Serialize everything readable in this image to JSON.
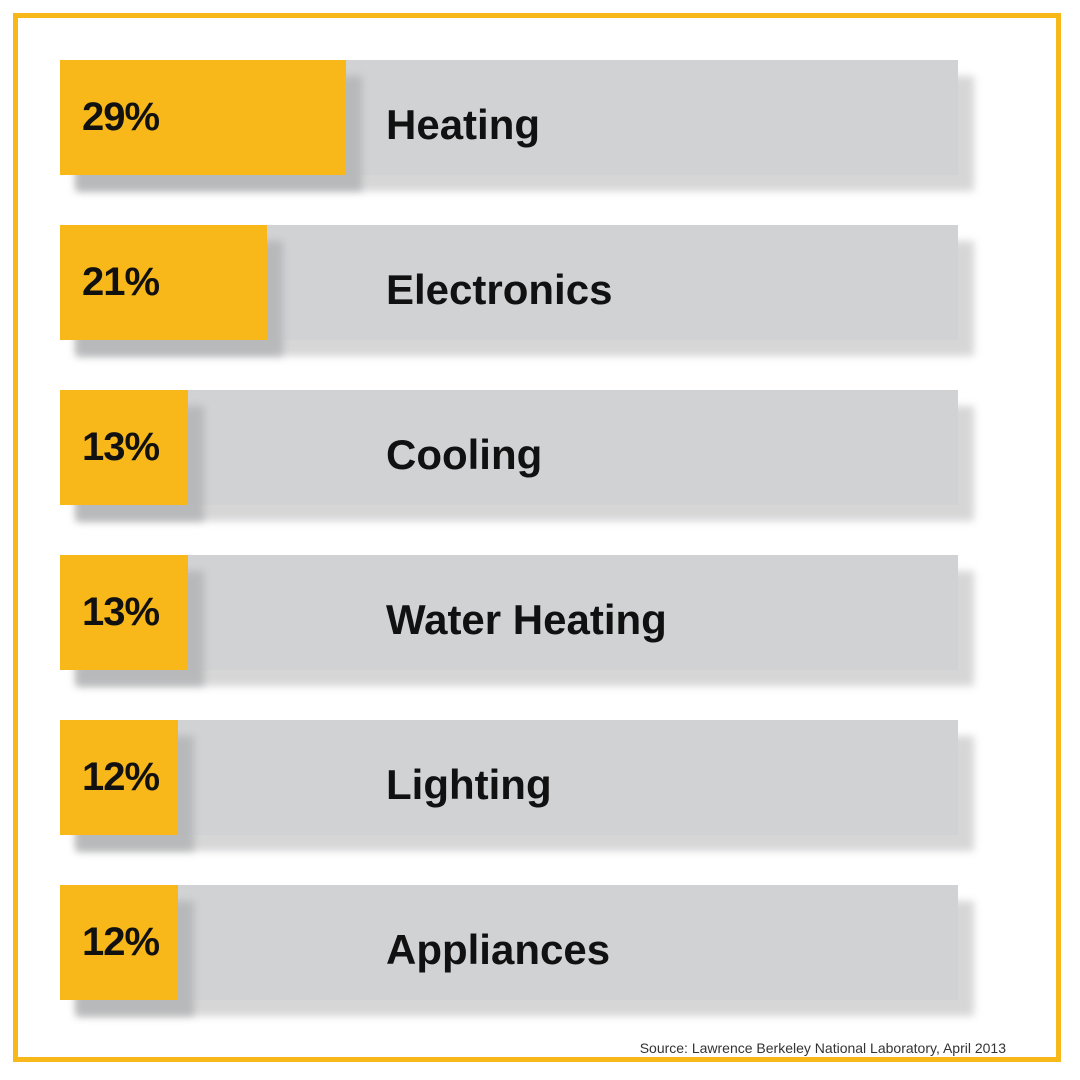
{
  "chart_data": {
    "type": "bar",
    "orientation": "horizontal",
    "categories": [
      "Heating",
      "Electronics",
      "Cooling",
      "Water Heating",
      "Lighting",
      "Appliances"
    ],
    "values": [
      29,
      21,
      13,
      13,
      12,
      12
    ],
    "value_labels": [
      "29%",
      "21%",
      "13%",
      "13%",
      "12%",
      "12%"
    ],
    "unit": "%",
    "source": "Source: Lawrence Berkeley National Laboratory, April 2013"
  },
  "colors": {
    "accent": "#F9B819",
    "track": "#D1D2D4",
    "text": "#111111"
  }
}
